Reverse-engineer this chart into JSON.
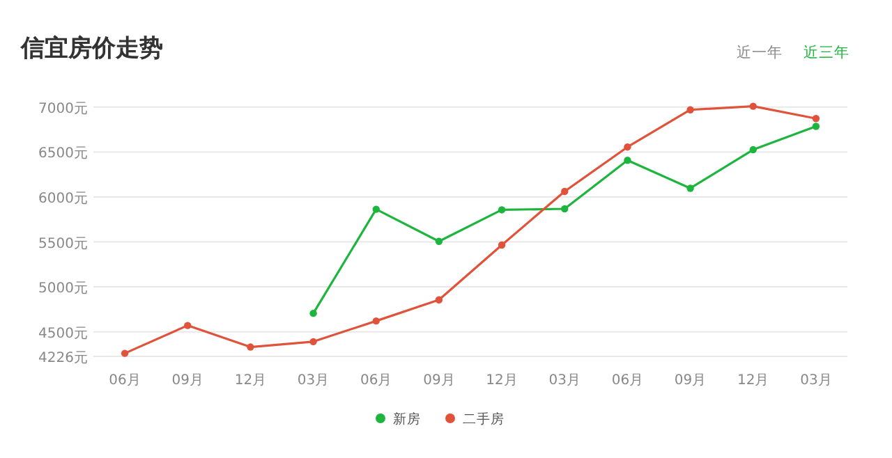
{
  "chart_data": {
    "type": "line",
    "title": "信宜房价走势",
    "annotations": [
      "近一年",
      "近三年"
    ],
    "categories": [
      "06月",
      "09月",
      "12月",
      "03月",
      "06月",
      "09月",
      "12月",
      "03月",
      "06月",
      "09月",
      "12月",
      "03月"
    ],
    "series": [
      {
        "name": "新房",
        "color": "#1db53e",
        "values": [
          null,
          null,
          null,
          4705,
          5863,
          5506,
          5857,
          5868,
          6408,
          6097,
          6526,
          6786
        ]
      },
      {
        "name": "二手房",
        "color": "#e0533a",
        "values": [
          4260,
          4570,
          4330,
          4390,
          4620,
          4855,
          5465,
          6062,
          6556,
          6970,
          7010,
          6873
        ]
      }
    ],
    "ylim": [
      4226,
      7030
    ],
    "yticks": [
      {
        "value": 4226,
        "label": "4226元"
      },
      {
        "value": 4500,
        "label": "4500元"
      },
      {
        "value": 5000,
        "label": "5000元"
      },
      {
        "value": 5500,
        "label": "5500元"
      },
      {
        "value": 6000,
        "label": "6000元"
      },
      {
        "value": 6500,
        "label": "6500元"
      },
      {
        "value": 7000,
        "label": "7000元"
      }
    ],
    "grid": "y",
    "legend": "bottom",
    "marker": "circle",
    "line_style": "solid"
  }
}
